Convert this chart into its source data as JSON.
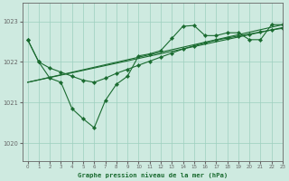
{
  "bg_color": "#ceeae0",
  "grid_color": "#9dcfbe",
  "line_color": "#1a6b30",
  "title": "Graphe pression niveau de la mer (hPa)",
  "xlim": [
    -0.5,
    23
  ],
  "ylim": [
    1019.55,
    1023.45
  ],
  "yticks": [
    1020,
    1021,
    1022,
    1023
  ],
  "xticks": [
    0,
    1,
    2,
    3,
    4,
    5,
    6,
    7,
    8,
    9,
    10,
    11,
    12,
    13,
    14,
    15,
    16,
    17,
    18,
    19,
    20,
    21,
    22,
    23
  ],
  "line1_x": [
    0,
    1,
    2,
    3,
    4,
    5,
    6,
    7,
    8,
    9,
    10,
    11,
    12,
    13,
    14,
    15,
    16,
    17,
    18,
    19,
    20,
    21,
    22,
    23
  ],
  "line1_y": [
    1022.55,
    1022.0,
    1021.6,
    1021.5,
    1020.85,
    1020.6,
    1020.38,
    1021.05,
    1021.45,
    1021.65,
    1022.15,
    1022.2,
    1022.28,
    1022.58,
    1022.88,
    1022.9,
    1022.65,
    1022.65,
    1022.72,
    1022.72,
    1022.55,
    1022.55,
    1022.92,
    1022.92
  ],
  "line2_x": [
    0,
    1,
    2,
    3,
    4,
    5,
    6,
    7,
    8,
    9,
    10,
    11,
    12,
    13,
    14,
    15,
    16,
    17,
    18,
    19,
    20,
    21,
    22,
    23
  ],
  "line2_y": [
    1022.55,
    1022.0,
    1021.85,
    1021.75,
    1021.65,
    1021.55,
    1021.5,
    1021.6,
    1021.72,
    1021.82,
    1021.92,
    1022.02,
    1022.12,
    1022.22,
    1022.32,
    1022.4,
    1022.47,
    1022.54,
    1022.59,
    1022.64,
    1022.69,
    1022.74,
    1022.79,
    1022.83
  ],
  "line3_x": [
    0,
    23
  ],
  "line3_y": [
    1021.5,
    1022.85
  ],
  "line4_x": [
    0,
    23
  ],
  "line4_y": [
    1021.5,
    1022.92
  ],
  "spine_color": "#666666"
}
